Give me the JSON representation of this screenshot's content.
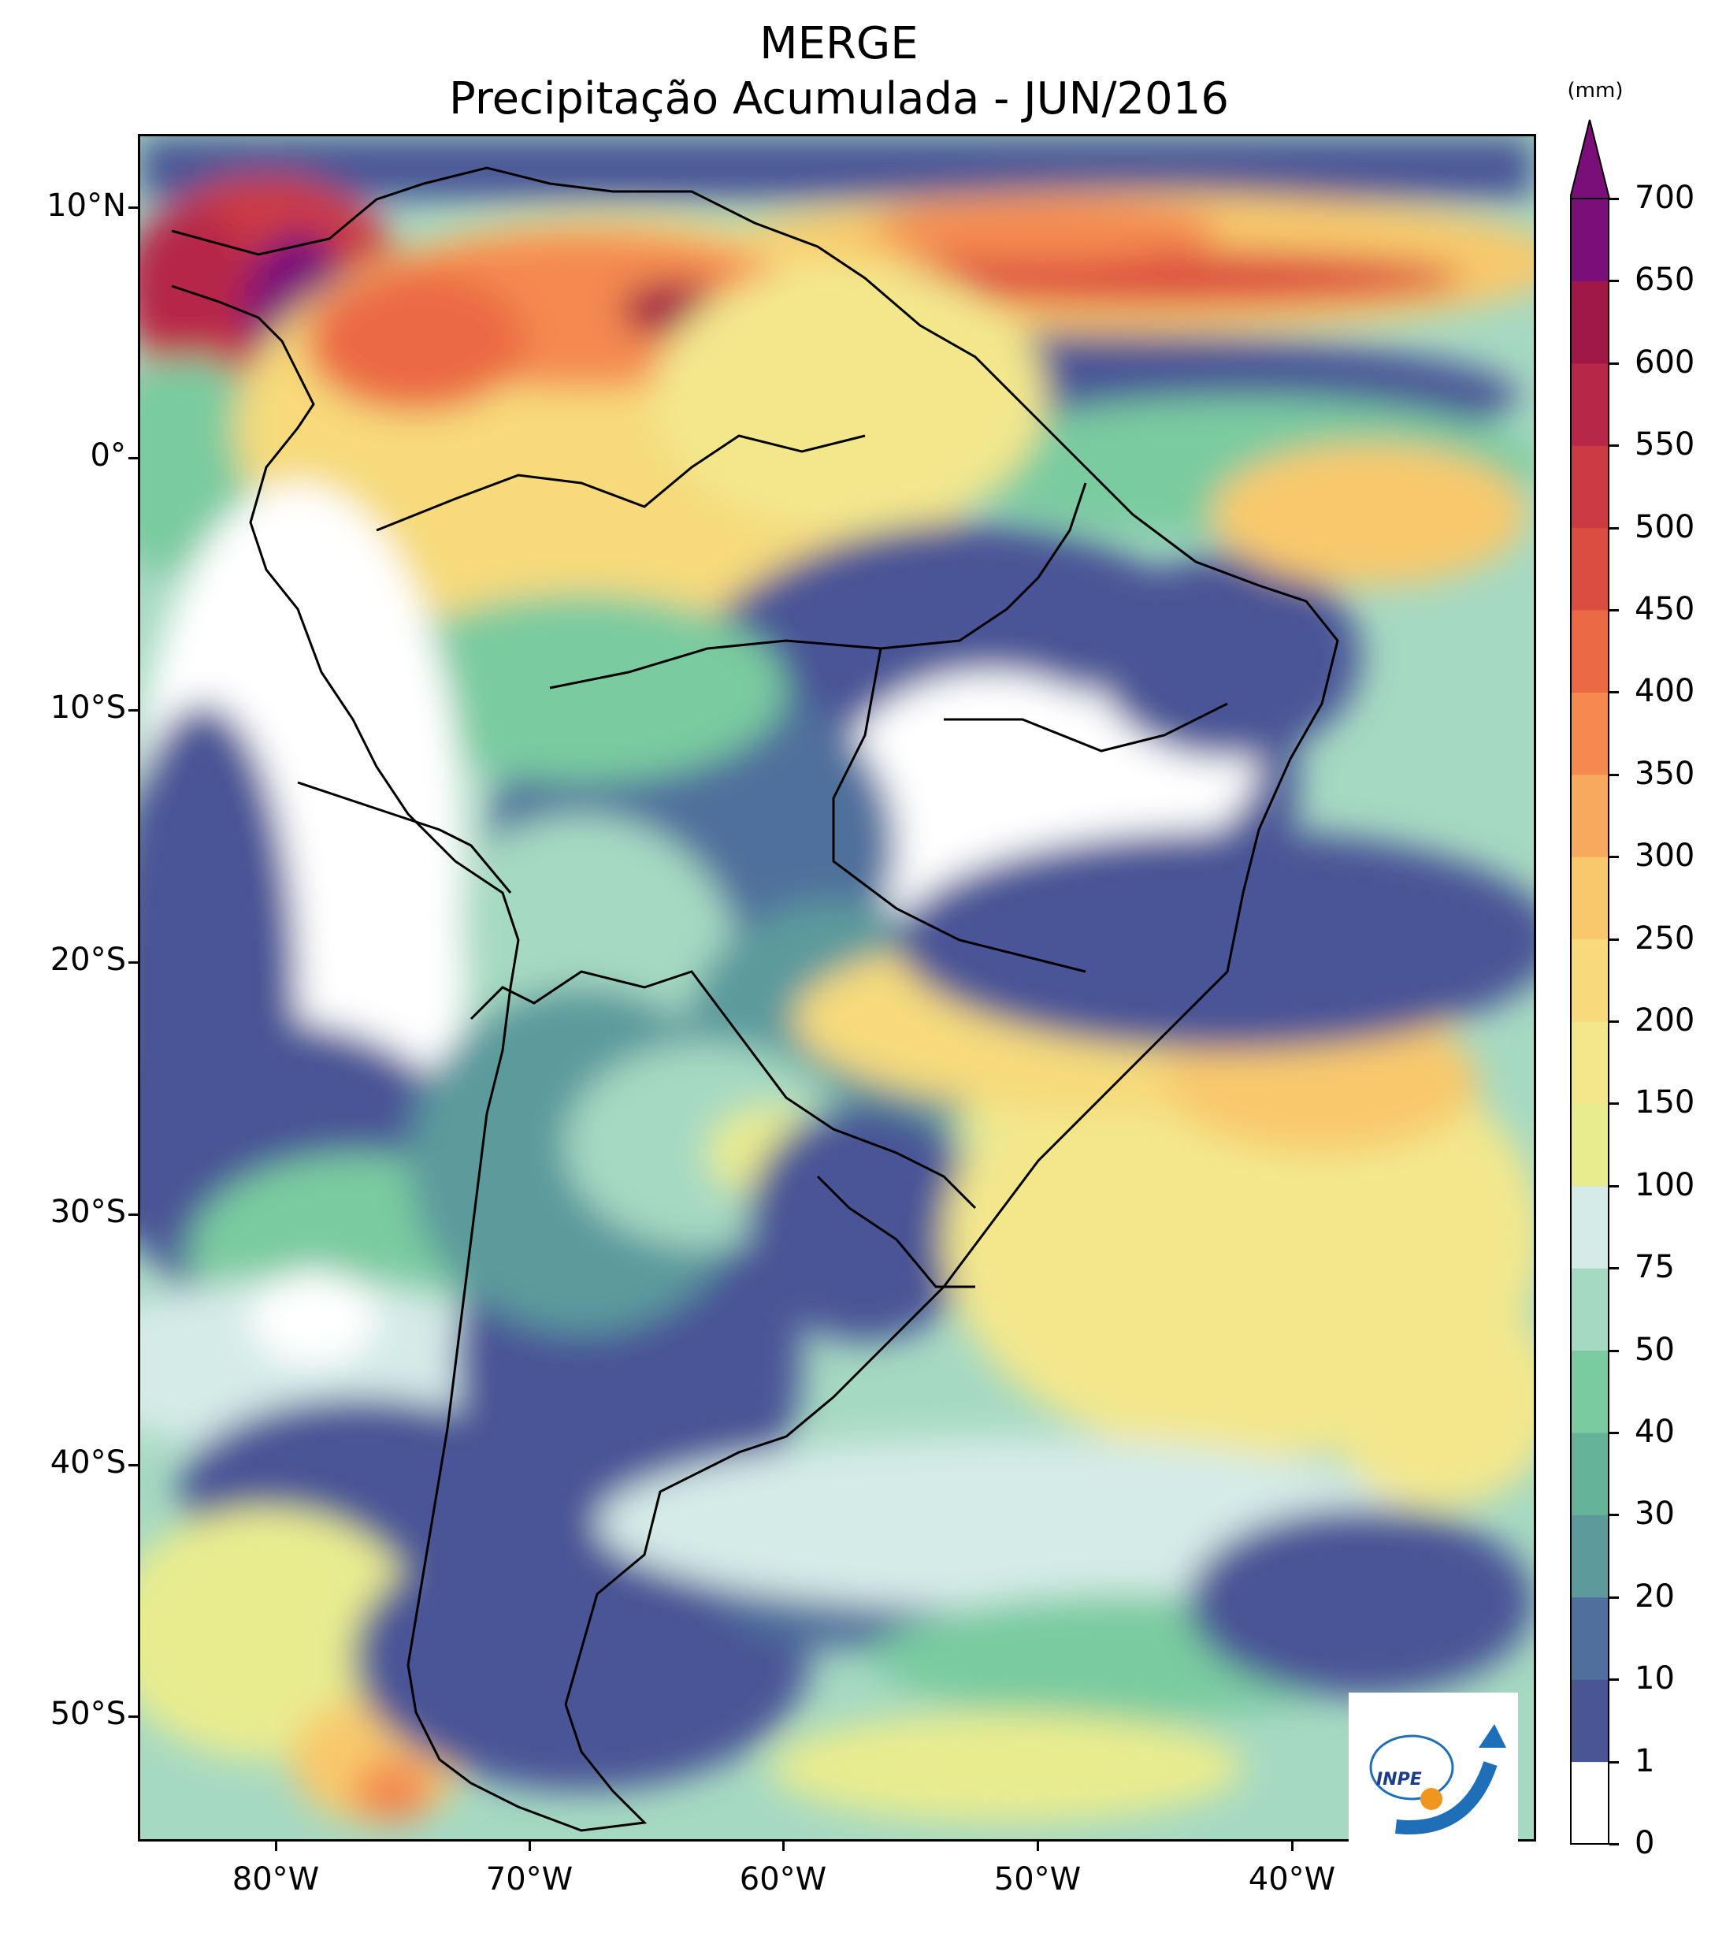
{
  "title": {
    "line1": "MERGE",
    "line2": "Precipitação Acumulada - JUN/2016"
  },
  "map": {
    "lat_labels": [
      "10°N",
      "0°",
      "10°S",
      "20°S",
      "30°S",
      "40°S",
      "50°S"
    ],
    "lon_labels": [
      "80°W",
      "70°W",
      "60°W",
      "50°W",
      "40°W"
    ],
    "lat_values": [
      10,
      0,
      -10,
      -20,
      -30,
      -40,
      -50
    ],
    "lon_values": [
      -80,
      -70,
      -60,
      -50,
      -40
    ],
    "extent": {
      "lon_min": -85,
      "lon_max": -30,
      "lat_min": -56,
      "lat_max": 12.5
    }
  },
  "colorbar": {
    "unit": "(mm)",
    "ticks": [
      "0",
      "1",
      "10",
      "20",
      "30",
      "40",
      "50",
      "75",
      "100",
      "150",
      "200",
      "250",
      "300",
      "350",
      "400",
      "450",
      "500",
      "550",
      "600",
      "650",
      "700"
    ],
    "colors": [
      "#ffffff",
      "#4a5596",
      "#506f9c",
      "#5c9a9c",
      "#65b49a",
      "#7acba0",
      "#a6d9c2",
      "#d4ebe7",
      "#e8ec8f",
      "#f3e78c",
      "#f6da7c",
      "#f8c96c",
      "#f7a95e",
      "#f48a50",
      "#eb6a44",
      "#dc4d41",
      "#cc3b44",
      "#b62748",
      "#a01848",
      "#7a0f7a"
    ],
    "extend_color": "#7a0f7a"
  },
  "logo": {
    "text": "INPE",
    "icon": "inpe-logo-icon"
  }
}
